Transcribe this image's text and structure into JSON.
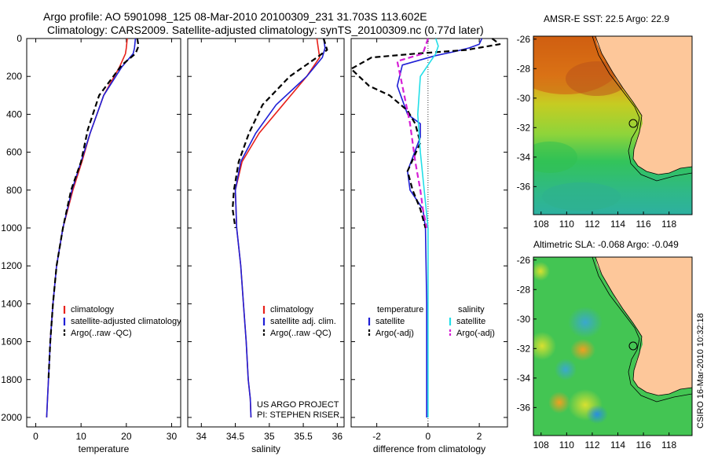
{
  "header": {
    "title_line1": "Argo profile: AO 5901098_125 08-Mar-2010 20100309_231 31.703S 113.602E",
    "title_line2": "Climatology: CARS2009. Satellite-adjusted climatology: synTS_20100309.nc (0.77d later)"
  },
  "footer_credit": "CSIRO 16-Mar-2010 10:32:18",
  "project_line1": "US ARGO PROJECT",
  "project_line2": "PI: STEPHEN RISER",
  "colors": {
    "climatology": "#e8211b",
    "satellite": "#1f1fd6",
    "argo": "#000000",
    "salinity_sat": "#22dfe8",
    "salinity_argo": "#d61fd6"
  },
  "chart_data": [
    {
      "type": "line",
      "xlabel": "temperature",
      "ylabel": "",
      "xlim": [
        -2,
        32
      ],
      "ylim": [
        2050,
        0
      ],
      "x_ticks": [
        0,
        10,
        20,
        30
      ],
      "y_ticks": [
        0,
        200,
        400,
        600,
        800,
        1000,
        1200,
        1400,
        1600,
        1800,
        2000
      ],
      "legend_labels": [
        "climatology",
        "satellite-adjusted climatology",
        "Argo(..raw -QC)"
      ],
      "series": [
        {
          "name": "climatology",
          "color": "#e8211b",
          "dash": "",
          "x": [
            20.2,
            20.0,
            19.8,
            18.5,
            15.0,
            12.0,
            10.2,
            8.2,
            6.0,
            4.6,
            3.8,
            3.2,
            2.8,
            2.6,
            2.4
          ],
          "y": [
            0,
            50,
            80,
            150,
            300,
            500,
            650,
            800,
            1000,
            1200,
            1400,
            1600,
            1800,
            1900,
            2000
          ]
        },
        {
          "name": "satellite-adjusted climatology",
          "color": "#1f1fd6",
          "dash": "",
          "x": [
            22.0,
            21.8,
            21.5,
            19.0,
            15.0,
            12.0,
            10.0,
            8.0,
            6.0,
            4.6,
            3.8,
            3.2,
            2.8,
            2.6,
            2.4
          ],
          "y": [
            0,
            50,
            80,
            150,
            300,
            500,
            650,
            800,
            1000,
            1200,
            1400,
            1600,
            1800,
            1900,
            2000
          ]
        },
        {
          "name": "Argo(..raw -QC)",
          "color": "#000000",
          "dash": "7,4",
          "x": [
            22.4,
            22.7,
            22.0,
            19.0,
            14.0,
            11.5,
            10.0,
            7.8,
            6.0,
            4.6,
            3.8,
            3.2,
            2.8
          ],
          "y": [
            0,
            40,
            80,
            140,
            300,
            480,
            650,
            800,
            1000,
            1200,
            1400,
            1600,
            1800
          ]
        }
      ]
    },
    {
      "type": "line",
      "xlabel": "salinity",
      "ylabel": "",
      "xlim": [
        33.8,
        36.1
      ],
      "ylim": [
        2050,
        0
      ],
      "x_ticks": [
        34,
        34.5,
        35,
        35.5,
        36
      ],
      "legend_labels": [
        "climatology",
        "satellite adj. clim.",
        "Argo(..raw -QC)"
      ],
      "series": [
        {
          "name": "climatology",
          "color": "#e8211b",
          "dash": "",
          "x": [
            35.7,
            35.72,
            35.74,
            35.55,
            35.2,
            34.85,
            34.6,
            34.5,
            34.52,
            34.58,
            34.62,
            34.66,
            34.69,
            34.72,
            34.73
          ],
          "y": [
            0,
            50,
            100,
            200,
            350,
            500,
            650,
            800,
            1000,
            1200,
            1400,
            1600,
            1800,
            1900,
            2000
          ]
        },
        {
          "name": "satellite adj. clim.",
          "color": "#1f1fd6",
          "dash": "",
          "x": [
            35.8,
            35.82,
            35.78,
            35.55,
            35.1,
            34.8,
            34.58,
            34.5,
            34.52,
            34.58,
            34.62,
            34.66,
            34.69,
            34.72,
            34.73
          ],
          "y": [
            0,
            50,
            100,
            200,
            350,
            500,
            650,
            800,
            1000,
            1200,
            1400,
            1600,
            1800,
            1900,
            2000
          ]
        },
        {
          "name": "Argo(..raw -QC)",
          "color": "#000000",
          "dash": "7,4",
          "x": [
            35.8,
            35.85,
            35.7,
            35.3,
            34.9,
            34.7,
            34.55,
            34.48,
            34.46,
            34.5
          ],
          "y": [
            0,
            60,
            100,
            200,
            350,
            500,
            650,
            800,
            900,
            1000
          ]
        }
      ]
    },
    {
      "type": "line",
      "xlabel": "difference from climatology",
      "ylabel": "",
      "xlim": [
        -3.0,
        3.1
      ],
      "ylim": [
        2050,
        0
      ],
      "x_ticks": [
        -2,
        0,
        2
      ],
      "legend_labels": [
        "temperature",
        "satellite",
        "Argo(-adj)",
        "salinity",
        "satellite",
        "Argo(-adj)"
      ],
      "series": [
        {
          "name": "temperature satellite",
          "color": "#1f1fd6",
          "dash": "",
          "x": [
            2.1,
            2.0,
            1.6,
            1.0,
            0.3,
            -1.0,
            -1.2,
            -0.8,
            -0.3,
            -0.3,
            -0.8,
            -0.7,
            -0.2,
            -0.1,
            -0.05,
            -0.05,
            -0.05
          ],
          "y": [
            0,
            30,
            50,
            70,
            90,
            140,
            250,
            400,
            450,
            520,
            700,
            800,
            900,
            1000,
            1400,
            1800,
            2000
          ]
        },
        {
          "name": "temperature Argo(-adj)",
          "color": "#000000",
          "dash": "7,4",
          "x": [
            2.5,
            2.8,
            1.5,
            -0.5,
            -2.2,
            -3.0,
            -2.3,
            -1.5,
            -0.8,
            -0.5,
            -0.3,
            -0.8,
            -0.6,
            -0.3,
            -0.1
          ],
          "y": [
            0,
            30,
            60,
            80,
            100,
            160,
            250,
            300,
            380,
            450,
            550,
            700,
            800,
            900,
            1000
          ]
        },
        {
          "name": "salinity satellite",
          "color": "#22dfe8",
          "dash": "",
          "x": [
            0.3,
            0.4,
            0.3,
            0.1,
            -0.3,
            -0.4,
            -0.3,
            -0.15,
            0.0,
            0.0
          ],
          "y": [
            0,
            40,
            80,
            120,
            200,
            400,
            600,
            800,
            1000,
            2000
          ]
        },
        {
          "name": "salinity Argo(-adj)",
          "color": "#d61fd6",
          "dash": "7,4",
          "x": [
            0.0,
            -0.1,
            -0.2,
            -1.2,
            -1.0,
            -0.7,
            -0.5,
            -0.3,
            -0.2,
            -0.05
          ],
          "y": [
            0,
            40,
            80,
            120,
            250,
            450,
            650,
            800,
            900,
            1000
          ]
        }
      ]
    }
  ],
  "maps": [
    {
      "title": "AMSR-E SST: 22.5 Argo: 22.9",
      "x_ticks": [
        "108",
        "110",
        "112",
        "114",
        "116",
        "118"
      ],
      "y_ticks": [
        "-26",
        "-28",
        "-30",
        "-32",
        "-34",
        "-36"
      ],
      "lon_range": [
        107.4,
        119.8
      ],
      "lat_range": [
        -37.9,
        -25.8
      ]
    },
    {
      "title": "Altimetric SLA: -0.068 Argo: -0.049",
      "x_ticks": [
        "108",
        "110",
        "112",
        "114",
        "116",
        "118"
      ],
      "y_ticks": [
        "-26",
        "-28",
        "-30",
        "-32",
        "-34",
        "-36"
      ],
      "lon_range": [
        107.4,
        119.8
      ],
      "lat_range": [
        -37.9,
        -25.8
      ]
    }
  ],
  "float_position": {
    "lon": 113.602,
    "lat": -31.703
  }
}
